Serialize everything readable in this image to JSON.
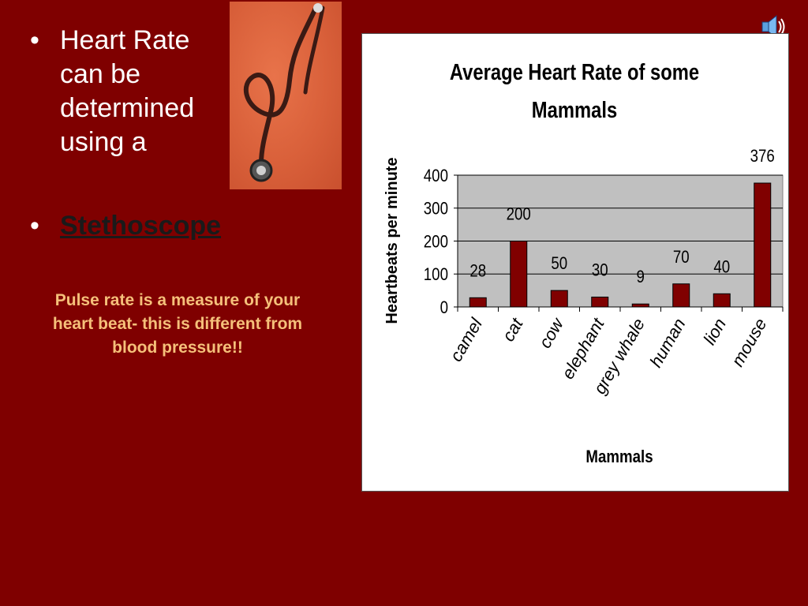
{
  "slide": {
    "bullet1": "Heart Rate can be determined using a",
    "bullet2": "Stethoscope",
    "bullet_marker": "•",
    "note": "Pulse rate is a measure of your heart beat- this is different from blood pressure!!",
    "background_color": "#7f0000",
    "image_icon": "stethoscope-photo",
    "audio_icon": "speaker-icon"
  },
  "chart_data": {
    "type": "bar",
    "title": "Average Heart Rate of some Mammals",
    "xlabel": "Mammals",
    "ylabel": "Heartbeats per minute",
    "categories": [
      "camel",
      "cat",
      "cow",
      "elephant",
      "grey whale",
      "human",
      "lion",
      "mouse"
    ],
    "values": [
      28,
      200,
      50,
      30,
      9,
      70,
      40,
      376
    ],
    "yticks": [
      0,
      100,
      200,
      300,
      400
    ],
    "ylim": [
      0,
      400
    ],
    "bar_color": "#800000",
    "plot_background": "#c0c0c0",
    "grid": true,
    "legend": false,
    "data_labels": true
  }
}
